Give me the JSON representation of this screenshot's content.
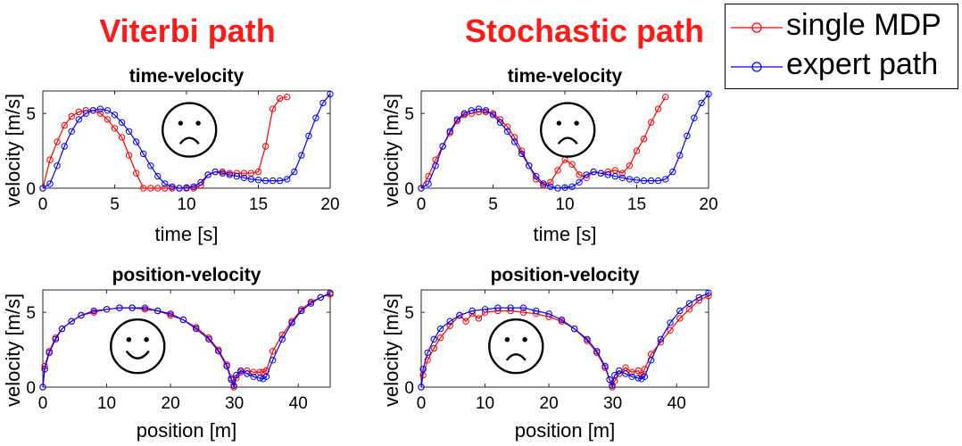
{
  "titles": {
    "left": "Viterbi path",
    "right": "Stochastic path"
  },
  "legend": [
    {
      "label": "single MDP",
      "color": "#ff0000"
    },
    {
      "label": "expert path",
      "color": "#0000ff"
    }
  ],
  "chart_data": [
    {
      "type": "line",
      "title": "time-velocity",
      "xlabel": "time [s]",
      "ylabel": "velocity [m/s]",
      "xlim": [
        0,
        20
      ],
      "ylim": [
        0,
        6.5
      ],
      "xticks": [
        0,
        5,
        10,
        15,
        20
      ],
      "yticks": [
        0,
        5
      ],
      "annotation": "sad-face",
      "series": [
        {
          "name": "single MDP",
          "color": "#ff0000",
          "x": [
            0,
            0.5,
            1,
            1.5,
            2,
            2.5,
            3,
            3.5,
            4,
            4.5,
            5,
            5.5,
            6,
            6.5,
            7,
            7.5,
            8,
            8.5,
            9,
            9.5,
            10,
            10.5,
            11,
            11.5,
            12,
            12.5,
            13,
            13.5,
            14,
            14.5,
            15,
            15.5,
            16,
            16.5,
            17
          ],
          "y": [
            0,
            1.9,
            3.1,
            4.2,
            4.8,
            5.1,
            5.2,
            5.2,
            5.0,
            4.6,
            4.0,
            3.4,
            2.2,
            1.0,
            0,
            0,
            0,
            0,
            0,
            0,
            0,
            0,
            0.2,
            0.9,
            1.1,
            1.1,
            1.0,
            1.0,
            1.0,
            1.0,
            1.1,
            2.8,
            5.3,
            6.0,
            6.1
          ]
        },
        {
          "name": "expert path",
          "color": "#0000ff",
          "x": [
            0,
            0.5,
            1,
            1.5,
            2,
            2.5,
            3,
            3.5,
            4,
            4.5,
            5,
            5.5,
            6,
            6.5,
            7,
            7.5,
            8,
            8.5,
            9,
            9.5,
            10,
            10.5,
            11,
            11.5,
            12,
            12.5,
            13,
            13.5,
            14,
            14.5,
            15,
            15.5,
            16,
            16.5,
            17,
            17.5,
            18,
            18.5,
            19,
            19.5,
            20
          ],
          "y": [
            0,
            0.3,
            1.5,
            2.8,
            3.8,
            4.6,
            5.0,
            5.2,
            5.3,
            5.2,
            4.9,
            4.4,
            3.8,
            3.1,
            2.3,
            1.5,
            0.8,
            0.3,
            0.1,
            0,
            0.05,
            0.1,
            0.4,
            0.9,
            1.1,
            1.0,
            0.9,
            0.8,
            0.7,
            0.6,
            0.55,
            0.5,
            0.5,
            0.5,
            0.6,
            1.1,
            2.2,
            3.5,
            4.7,
            5.7,
            6.3
          ]
        }
      ]
    },
    {
      "type": "line",
      "title": "time-velocity",
      "xlabel": "time [s]",
      "ylabel": "velocity [m/s]",
      "xlim": [
        0,
        20
      ],
      "ylim": [
        0,
        6.5
      ],
      "xticks": [
        0,
        5,
        10,
        15,
        20
      ],
      "yticks": [
        0,
        5
      ],
      "annotation": "sad-face",
      "series": [
        {
          "name": "single MDP",
          "color": "#ff0000",
          "x": [
            0,
            0.5,
            1,
            1.5,
            2,
            2.5,
            3,
            3.5,
            4,
            4.5,
            5,
            5.5,
            6,
            6.5,
            7,
            7.5,
            8,
            8.5,
            9,
            9.5,
            10,
            10.5,
            11,
            11.5,
            12,
            12.5,
            13,
            13.5,
            14,
            14.5,
            15,
            15.5,
            16,
            16.5,
            17
          ],
          "y": [
            0,
            0.8,
            1.9,
            2.8,
            3.7,
            4.5,
            4.9,
            5.0,
            5.1,
            5.1,
            5.0,
            4.6,
            4.1,
            3.4,
            2.5,
            1.5,
            0.6,
            0.2,
            0.4,
            1.2,
            1.9,
            1.6,
            0.9,
            0.7,
            1.1,
            1.0,
            1.1,
            1.2,
            1.0,
            1.5,
            2.5,
            3.3,
            4.4,
            5.3,
            6.1
          ]
        },
        {
          "name": "expert path",
          "color": "#0000ff",
          "x": [
            0,
            0.5,
            1,
            1.5,
            2,
            2.5,
            3,
            3.5,
            4,
            4.5,
            5,
            5.5,
            6,
            6.5,
            7,
            7.5,
            8,
            8.5,
            9,
            9.5,
            10,
            10.5,
            11,
            11.5,
            12,
            12.5,
            13,
            13.5,
            14,
            14.5,
            15,
            15.5,
            16,
            16.5,
            17,
            17.5,
            18,
            18.5,
            19,
            19.5,
            20
          ],
          "y": [
            0,
            0.3,
            1.5,
            2.8,
            3.8,
            4.6,
            5.0,
            5.2,
            5.3,
            5.2,
            4.9,
            4.4,
            3.8,
            3.1,
            2.3,
            1.5,
            0.8,
            0.3,
            0.1,
            0,
            0.05,
            0.1,
            0.4,
            0.9,
            1.1,
            1.0,
            0.9,
            0.8,
            0.7,
            0.6,
            0.55,
            0.5,
            0.5,
            0.5,
            0.6,
            1.1,
            2.2,
            3.5,
            4.7,
            5.7,
            6.3
          ]
        }
      ]
    },
    {
      "type": "line",
      "title": "position-velocity",
      "xlabel": "position [m]",
      "ylabel": "velocity [m/s]",
      "xlim": [
        0,
        45
      ],
      "ylim": [
        0,
        6.5
      ],
      "xticks": [
        0,
        10,
        20,
        30,
        40
      ],
      "yticks": [
        0,
        5
      ],
      "annotation": "happy-face",
      "series": [
        {
          "name": "single MDP",
          "color": "#ff0000",
          "x": [
            0,
            0.3,
            1,
            2,
            3,
            4.5,
            6,
            8,
            10,
            12,
            14,
            16,
            18,
            20,
            22,
            24,
            26,
            27.5,
            28.8,
            29.5,
            29.9,
            30.3,
            31,
            32,
            33,
            34,
            34.5,
            35,
            36,
            37.5,
            39,
            40.5,
            42,
            43.5,
            45
          ],
          "y": [
            0,
            1.4,
            2.4,
            3.3,
            3.9,
            4.4,
            4.8,
            5.0,
            5.2,
            5.3,
            5.3,
            5.2,
            5.1,
            4.8,
            4.5,
            4.0,
            3.3,
            2.5,
            1.5,
            0.6,
            0,
            0.6,
            1.0,
            1.1,
            1.0,
            1.0,
            1.0,
            1.1,
            2.4,
            3.5,
            4.4,
            5.2,
            5.7,
            6.0,
            6.2
          ]
        },
        {
          "name": "expert path",
          "color": "#0000ff",
          "x": [
            0,
            0.3,
            1,
            2,
            3,
            4.5,
            6,
            8,
            10,
            12,
            14,
            16,
            18,
            20,
            22,
            24,
            26,
            27.5,
            28.8,
            29.5,
            29.9,
            30.3,
            31,
            32,
            33,
            34,
            34.5,
            35,
            36,
            37.5,
            39,
            40.5,
            42,
            43.5,
            45
          ],
          "y": [
            0,
            1.2,
            2.3,
            3.2,
            3.9,
            4.4,
            4.8,
            5.1,
            5.2,
            5.3,
            5.3,
            5.3,
            5.1,
            4.9,
            4.5,
            3.9,
            3.2,
            2.4,
            1.4,
            0.5,
            0.1,
            0.8,
            1.1,
            0.9,
            0.7,
            0.6,
            0.55,
            0.7,
            1.8,
            3.2,
            4.3,
            5.1,
            5.6,
            6.0,
            6.3
          ]
        }
      ]
    },
    {
      "type": "line",
      "title": "position-velocity",
      "xlabel": "position [m]",
      "ylabel": "velocity [m/s]",
      "xlim": [
        0,
        45
      ],
      "ylim": [
        0,
        6.5
      ],
      "xticks": [
        0,
        10,
        20,
        30,
        40
      ],
      "yticks": [
        0,
        5
      ],
      "annotation": "sad-face",
      "series": [
        {
          "name": "single MDP",
          "color": "#ff0000",
          "x": [
            0,
            0.3,
            1,
            2,
            3,
            4.5,
            6,
            7,
            8,
            9,
            10,
            12,
            14,
            16,
            18,
            20,
            22,
            24,
            26,
            27.5,
            28.8,
            29.5,
            29.9,
            30.3,
            31,
            32,
            33,
            34,
            34.5,
            35,
            36,
            37.5,
            39,
            40.5,
            42,
            43.5,
            45
          ],
          "y": [
            0,
            0.8,
            1.8,
            2.6,
            3.3,
            4.1,
            4.8,
            4.4,
            4.9,
            4.6,
            5.0,
            5.1,
            5.1,
            5.0,
            4.9,
            4.7,
            4.4,
            3.9,
            3.1,
            2.3,
            1.3,
            0.5,
            0,
            0.4,
            0.9,
            1.3,
            1.0,
            1.1,
            0.8,
            1.2,
            2.2,
            3.0,
            3.8,
            4.6,
            5.2,
            5.8,
            6.1
          ]
        },
        {
          "name": "expert path",
          "color": "#0000ff",
          "x": [
            0,
            0.3,
            1,
            2,
            3,
            4.5,
            6,
            8,
            10,
            12,
            14,
            16,
            18,
            20,
            22,
            24,
            26,
            27.5,
            28.8,
            29.5,
            29.9,
            30.3,
            31,
            32,
            33,
            34,
            34.5,
            35,
            36,
            37.5,
            39,
            40.5,
            42,
            43.5,
            45
          ],
          "y": [
            0,
            1.2,
            2.3,
            3.2,
            3.9,
            4.4,
            4.8,
            5.1,
            5.2,
            5.3,
            5.3,
            5.3,
            5.1,
            4.9,
            4.5,
            3.9,
            3.2,
            2.4,
            1.4,
            0.5,
            0.1,
            0.8,
            1.1,
            0.9,
            0.7,
            0.6,
            0.55,
            0.7,
            1.8,
            3.2,
            4.3,
            5.1,
            5.6,
            6.0,
            6.3
          ]
        }
      ]
    }
  ]
}
